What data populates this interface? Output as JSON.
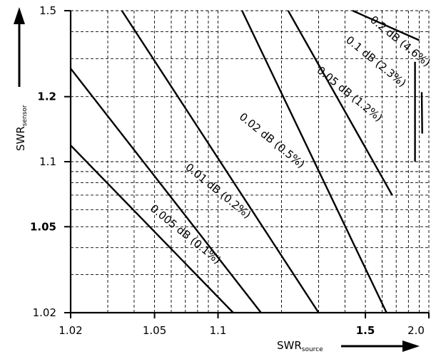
{
  "chart_data": {
    "type": "line",
    "title": "",
    "xlabel": "SWR",
    "xlabel_subscript": "source",
    "ylabel": "SWR",
    "ylabel_subscript": "sensor",
    "x_scale": "log(SWR-1)",
    "y_scale": "log(SWR-1)",
    "xlim": [
      1.02,
      2.0
    ],
    "ylim": [
      1.02,
      1.5
    ],
    "grid": true,
    "x_ticks": [
      {
        "value": 1.02,
        "label": "1.02",
        "bold": false
      },
      {
        "value": 1.05,
        "label": "1.05",
        "bold": false
      },
      {
        "value": 1.1,
        "label": "1.1",
        "bold": false
      },
      {
        "value": 1.5,
        "label": "1.5",
        "bold": true
      },
      {
        "value": 2.0,
        "label": "2.0",
        "bold": false
      }
    ],
    "y_ticks": [
      {
        "value": 1.02,
        "label": "1.02",
        "bold": false
      },
      {
        "value": 1.05,
        "label": "1.05",
        "bold": true
      },
      {
        "value": 1.1,
        "label": "1.1",
        "bold": false
      },
      {
        "value": 1.2,
        "label": "1.2",
        "bold": true
      },
      {
        "value": 1.5,
        "label": "1.5",
        "bold": false
      }
    ],
    "x_gridlines": [
      1.02,
      1.03,
      1.04,
      1.05,
      1.06,
      1.07,
      1.08,
      1.09,
      1.1,
      1.2,
      1.3,
      1.4,
      1.5,
      1.6,
      1.7,
      1.8,
      1.9,
      2.0
    ],
    "y_gridlines": [
      1.02,
      1.03,
      1.04,
      1.05,
      1.06,
      1.07,
      1.08,
      1.09,
      1.1,
      1.2,
      1.3,
      1.4,
      1.5
    ],
    "series": [
      {
        "name": "0.005 dB (0.1%)",
        "x": [
          1.02,
          1.118
        ],
        "y": [
          1.119,
          1.02
        ]
      },
      {
        "name": "0.01 dB (0.2%)",
        "x": [
          1.02,
          1.16
        ],
        "y": [
          1.27,
          1.02
        ]
      },
      {
        "name": "0.02 dB (0.5%)",
        "x": [
          1.035,
          1.3
        ],
        "y": [
          1.5,
          1.02
        ]
      },
      {
        "name": "0.05 dB (1.2%)",
        "x": [
          1.13,
          1.63
        ],
        "y": [
          1.5,
          1.02
        ]
      },
      {
        "name": "0.1 dB (2.3%)",
        "x": [
          1.215,
          1.67
        ],
        "y": [
          1.5,
          1.07
        ]
      },
      {
        "name": "0.2 dB (4.6%)",
        "x": [
          1.435,
          1.9
        ],
        "y": [
          1.5,
          1.365
        ]
      },
      {
        "name": "",
        "x": [
          1.86,
          1.86
        ],
        "y": [
          1.29,
          1.1
        ]
      },
      {
        "name": "",
        "x": [
          1.925,
          1.93
        ],
        "y": [
          1.21,
          1.135
        ]
      }
    ],
    "annotations": [
      {
        "text": "0.005 dB (0.1%)",
        "x": 1.07,
        "y": 1.046
      },
      {
        "text": "0.01 dB (0.2%)",
        "x": 1.1,
        "y": 1.073
      },
      {
        "text": "0.02 dB (0.5%)",
        "x": 1.18,
        "y": 1.125
      },
      {
        "text": "0.05 dB (1.2%)",
        "x": 1.42,
        "y": 1.205
      },
      {
        "text": "0.1 dB (2.3%)",
        "x": 1.56,
        "y": 1.29
      },
      {
        "text": "0.2 dB (4.6%)",
        "x": 1.73,
        "y": 1.36
      }
    ],
    "label_angle_deg": 39
  }
}
